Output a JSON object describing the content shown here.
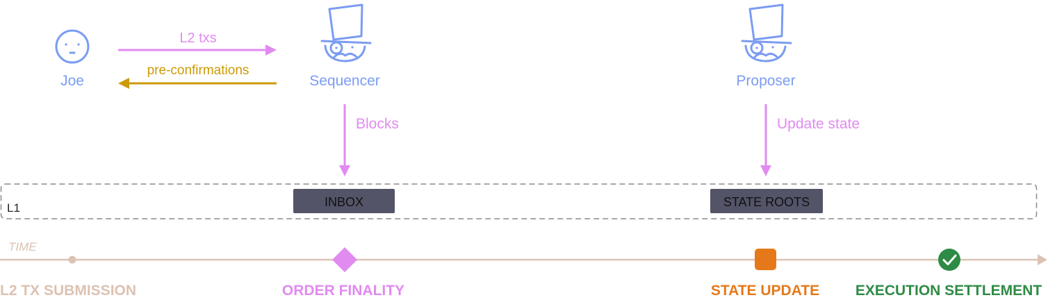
{
  "actors": {
    "joe": {
      "label": "Joe",
      "icon": "smiley-face-icon"
    },
    "sequencer": {
      "label": "Sequencer",
      "icon": "top-hat-monocle-mustache-icon"
    },
    "proposer": {
      "label": "Proposer",
      "icon": "top-hat-monocle-mustache-icon"
    }
  },
  "arrows": {
    "l2_txs": "L2 txs",
    "pre_confirmations": "pre-confirmations",
    "blocks": "Blocks",
    "update_state": "Update state"
  },
  "l1": {
    "label": "L1",
    "inbox": "INBOX",
    "state_roots": "STATE ROOTS"
  },
  "timeline": {
    "label": "TIME",
    "milestones": {
      "submission": "L2 TX SUBMISSION",
      "order_finality": "ORDER FINALITY",
      "state_update": "STATE UPDATE",
      "execution_settlement": "EXECUTION SETTLEMENT"
    }
  },
  "colors": {
    "actor_blue": "#7b9cf2",
    "flow_pink": "#e18bf0",
    "preconf_gold": "#cc9a06",
    "l1_box": "#535468",
    "timeline_beige": "#dcc2b3",
    "state_orange": "#e5791a",
    "settlement_green": "#2e8b45"
  }
}
